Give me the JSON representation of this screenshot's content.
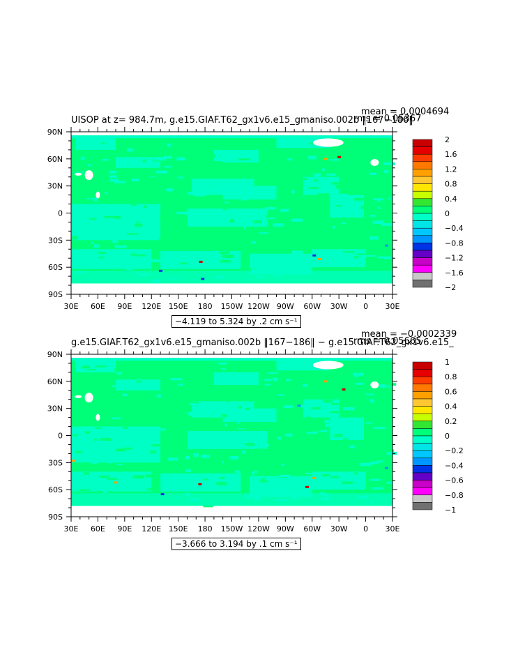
{
  "panels": [
    {
      "title": "UISOP at z= 984.7m, g.e15.GIAF.T62_gx1v6.e15_gmaniso.002b ‖167−186‖",
      "mean": "mean = 0.0004694",
      "rms": "rms = 0.05367",
      "range_label": "−4.119 to 5.324 by .2 cm s⁻¹",
      "colorbar": {
        "labels": [
          "2",
          "1.6",
          "1.2",
          "0.8",
          "0.4",
          "0",
          "−0.4",
          "−0.8",
          "−1.2",
          "−1.6",
          "−2"
        ],
        "colors": [
          "#c80000",
          "#e60000",
          "#ff3c00",
          "#ff7800",
          "#ffa000",
          "#ffc832",
          "#ffe600",
          "#c8ff00",
          "#32e632",
          "#00ff78",
          "#00ffc8",
          "#00e6e6",
          "#00c8ff",
          "#0096ff",
          "#0032e6",
          "#6400c8",
          "#c800c8",
          "#ff00ff",
          "#c8c8c8",
          "#707070"
        ]
      },
      "anomalies": [
        {
          "lon": 130,
          "lat": -64,
          "color": "#0032e6"
        },
        {
          "lon": 175,
          "lat": -54,
          "color": "#c80000"
        },
        {
          "lon": 177,
          "lat": -73,
          "color": "#0032e6"
        },
        {
          "lon": -58,
          "lat": -47,
          "color": "#0032e6"
        },
        {
          "lon": -52,
          "lat": -51,
          "color": "#ffa000"
        },
        {
          "lon": -45,
          "lat": 60,
          "color": "#ffa000"
        },
        {
          "lon": -30,
          "lat": 62,
          "color": "#c80000"
        },
        {
          "lon": 23,
          "lat": -36,
          "color": "#0096ff"
        }
      ]
    },
    {
      "title": "g.e15.GIAF.T62_gx1v6.e15_gmaniso.002b ‖167−186‖ − g.e15.GIAF.T62_gx1v6.e15_",
      "mean": "mean = −0.0002339",
      "rms": "rms = 0.05665",
      "range_label": "−3.666 to 3.194 by .1 cm s⁻¹",
      "colorbar": {
        "labels": [
          "1",
          "0.8",
          "0.6",
          "0.4",
          "0.2",
          "0",
          "−0.2",
          "−0.4",
          "−0.6",
          "−0.8",
          "−1"
        ],
        "colors": [
          "#c80000",
          "#e60000",
          "#ff3c00",
          "#ff7800",
          "#ffa000",
          "#ffc832",
          "#ffe600",
          "#c8ff00",
          "#32e632",
          "#00ff78",
          "#00ffc8",
          "#00e6e6",
          "#00c8ff",
          "#0096ff",
          "#0032e6",
          "#6400c8",
          "#c800c8",
          "#ff00ff",
          "#c8c8c8",
          "#707070"
        ]
      },
      "anomalies": [
        {
          "lon": 32,
          "lat": -28,
          "color": "#ffa000"
        },
        {
          "lon": 80,
          "lat": -52,
          "color": "#ffa000"
        },
        {
          "lon": 132,
          "lat": -65,
          "color": "#0032e6"
        },
        {
          "lon": 174,
          "lat": -54,
          "color": "#c80000"
        },
        {
          "lon": -58,
          "lat": -47,
          "color": "#ffa000"
        },
        {
          "lon": -66,
          "lat": -57,
          "color": "#c80000"
        },
        {
          "lon": -75,
          "lat": 33,
          "color": "#0096ff"
        },
        {
          "lon": -45,
          "lat": 60,
          "color": "#ffa000"
        },
        {
          "lon": -25,
          "lat": 51,
          "color": "#c80000"
        },
        {
          "lon": 23,
          "lat": -36,
          "color": "#0096ff"
        }
      ]
    }
  ],
  "axes": {
    "lon_labels": [
      "30E",
      "60E",
      "90E",
      "120E",
      "150E",
      "180",
      "150W",
      "120W",
      "90W",
      "60W",
      "30W",
      "0",
      "30E"
    ],
    "lat_labels": [
      "90N",
      "60N",
      "30N",
      "0",
      "30S",
      "60S",
      "90S"
    ]
  },
  "map_colors": {
    "base": "#00ff78",
    "negative": "#00ffc8",
    "land": "#ffffff"
  }
}
